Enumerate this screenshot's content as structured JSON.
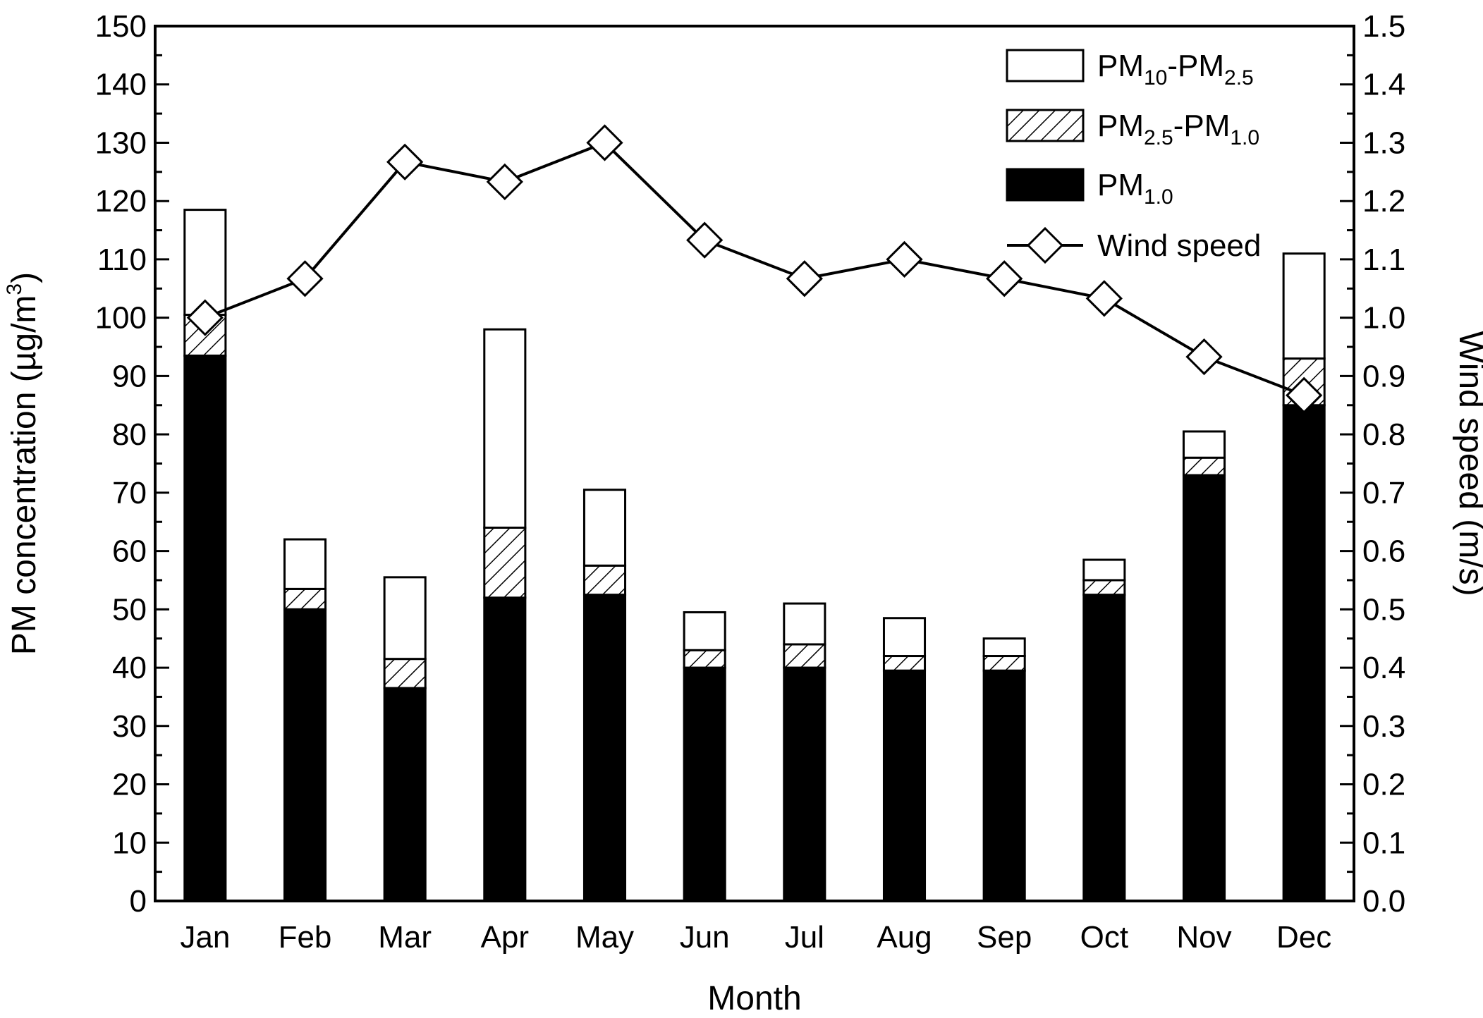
{
  "chart_data": {
    "type": "bar",
    "stacked": true,
    "categories": [
      "Jan",
      "Feb",
      "Mar",
      "Apr",
      "May",
      "Jun",
      "Jul",
      "Aug",
      "Sep",
      "Oct",
      "Nov",
      "Dec"
    ],
    "series": [
      {
        "name": "PM1.0",
        "style": "solid-black",
        "values": [
          93.5,
          50.0,
          36.5,
          52.0,
          52.5,
          40.0,
          40.0,
          39.5,
          39.5,
          52.5,
          73.0,
          85.0
        ]
      },
      {
        "name": "PM2.5-PM1.0",
        "style": "hatched",
        "values": [
          7.0,
          3.5,
          5.0,
          12.0,
          5.0,
          3.0,
          4.0,
          2.5,
          2.5,
          2.5,
          3.0,
          8.0
        ]
      },
      {
        "name": "PM10-PM2.5",
        "style": "open",
        "values": [
          18.0,
          8.5,
          14.0,
          34.0,
          13.0,
          6.5,
          7.0,
          6.5,
          3.0,
          3.5,
          4.5,
          18.0
        ]
      }
    ],
    "line_series": {
      "name": "Wind speed",
      "axis": "right",
      "marker": "diamond",
      "values": [
        1.0,
        1.067,
        1.267,
        1.233,
        1.3,
        1.133,
        1.067,
        1.1,
        1.067,
        1.033,
        0.933,
        0.867
      ]
    },
    "xlabel": "Month",
    "ylabel": "PM concentration (µg/m³)",
    "ylabel_parts": {
      "main": "PM concentration (µg/m",
      "sup": "3",
      "end": ")"
    },
    "y2label": "Wind speed (m/s)",
    "ylim": [
      0,
      150
    ],
    "y2lim": [
      0,
      1.5
    ],
    "yticks": [
      "0",
      "10",
      "20",
      "30",
      "40",
      "50",
      "60",
      "70",
      "80",
      "90",
      "100",
      "110",
      "120",
      "130",
      "140",
      "150"
    ],
    "y2ticks": [
      "0.0",
      "0.1",
      "0.2",
      "0.3",
      "0.4",
      "0.5",
      "0.6",
      "0.7",
      "0.8",
      "0.9",
      "1.0",
      "1.1",
      "1.2",
      "1.3",
      "1.4",
      "1.5"
    ],
    "legend": [
      {
        "name": "PM10-PM2.5",
        "parts": [
          [
            "PM",
            ""
          ],
          [
            "10",
            "sub"
          ],
          [
            "-PM",
            ""
          ],
          [
            "2.5",
            "sub"
          ]
        ],
        "style": "open"
      },
      {
        "name": "PM2.5-PM1.0",
        "parts": [
          [
            "PM",
            ""
          ],
          [
            "2.5",
            "sub"
          ],
          [
            "-PM",
            ""
          ],
          [
            "1.0",
            "sub"
          ]
        ],
        "style": "hatched"
      },
      {
        "name": "PM1.0",
        "parts": [
          [
            "PM",
            ""
          ],
          [
            "1.0",
            "sub"
          ]
        ],
        "style": "solid-black"
      },
      {
        "name": "Wind speed",
        "parts": [
          [
            "Wind speed",
            ""
          ]
        ],
        "style": "line-diamond"
      }
    ],
    "legend_position": "top-right",
    "grid": false
  }
}
